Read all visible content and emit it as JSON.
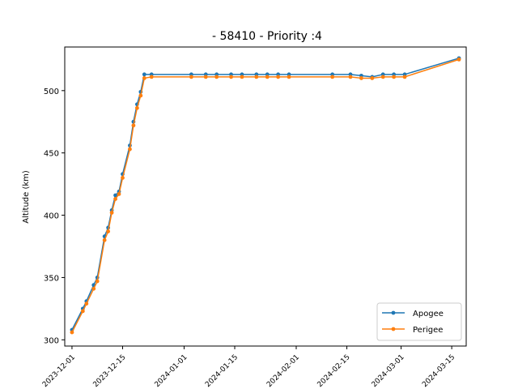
{
  "chart_data": {
    "type": "line",
    "title": "- 58410 - Priority :4",
    "xlabel": "",
    "ylabel": "Altitude (km)",
    "xlim": [
      "2023-11-29",
      "2024-03-19"
    ],
    "ylim": [
      295,
      535
    ],
    "x_ticks": [
      "2023-12-01",
      "2023-12-15",
      "2024-01-01",
      "2024-01-15",
      "2024-02-01",
      "2024-02-15",
      "2024-03-01",
      "2024-03-15"
    ],
    "y_ticks": [
      300,
      350,
      400,
      450,
      500
    ],
    "grid": false,
    "legend_position": "lower right",
    "series": [
      {
        "name": "Apogee",
        "color": "#1f77b4",
        "marker": "circle",
        "points": [
          [
            "2023-12-01",
            308
          ],
          [
            "2023-12-04",
            325
          ],
          [
            "2023-12-05",
            331
          ],
          [
            "2023-12-07",
            344
          ],
          [
            "2023-12-08",
            350
          ],
          [
            "2023-12-10",
            383
          ],
          [
            "2023-12-11",
            390
          ],
          [
            "2023-12-12",
            404
          ],
          [
            "2023-12-13",
            416
          ],
          [
            "2023-12-14",
            419
          ],
          [
            "2023-12-15",
            433
          ],
          [
            "2023-12-17",
            456
          ],
          [
            "2023-12-18",
            475
          ],
          [
            "2023-12-19",
            489
          ],
          [
            "2023-12-20",
            499
          ],
          [
            "2023-12-21",
            513
          ],
          [
            "2023-12-23",
            513
          ],
          [
            "2024-01-03",
            513
          ],
          [
            "2024-01-07",
            513
          ],
          [
            "2024-01-10",
            513
          ],
          [
            "2024-01-14",
            513
          ],
          [
            "2024-01-17",
            513
          ],
          [
            "2024-01-21",
            513
          ],
          [
            "2024-01-24",
            513
          ],
          [
            "2024-01-27",
            513
          ],
          [
            "2024-01-30",
            513
          ],
          [
            "2024-02-11",
            513
          ],
          [
            "2024-02-16",
            513
          ],
          [
            "2024-02-19",
            512
          ],
          [
            "2024-02-22",
            511
          ],
          [
            "2024-02-25",
            513
          ],
          [
            "2024-02-28",
            513
          ],
          [
            "2024-03-02",
            513
          ],
          [
            "2024-03-17",
            526
          ]
        ]
      },
      {
        "name": "Perigee",
        "color": "#ff7f0e",
        "marker": "circle",
        "points": [
          [
            "2023-12-01",
            306
          ],
          [
            "2023-12-04",
            323
          ],
          [
            "2023-12-05",
            329
          ],
          [
            "2023-12-07",
            341
          ],
          [
            "2023-12-08",
            347
          ],
          [
            "2023-12-10",
            380
          ],
          [
            "2023-12-11",
            387
          ],
          [
            "2023-12-12",
            402
          ],
          [
            "2023-12-13",
            413
          ],
          [
            "2023-12-14",
            417
          ],
          [
            "2023-12-15",
            430
          ],
          [
            "2023-12-17",
            453
          ],
          [
            "2023-12-18",
            472
          ],
          [
            "2023-12-19",
            486
          ],
          [
            "2023-12-20",
            496
          ],
          [
            "2023-12-21",
            510
          ],
          [
            "2023-12-23",
            511
          ],
          [
            "2024-01-03",
            511
          ],
          [
            "2024-01-07",
            511
          ],
          [
            "2024-01-10",
            511
          ],
          [
            "2024-01-14",
            511
          ],
          [
            "2024-01-17",
            511
          ],
          [
            "2024-01-21",
            511
          ],
          [
            "2024-01-24",
            511
          ],
          [
            "2024-01-27",
            511
          ],
          [
            "2024-01-30",
            511
          ],
          [
            "2024-02-11",
            511
          ],
          [
            "2024-02-16",
            511
          ],
          [
            "2024-02-19",
            510
          ],
          [
            "2024-02-22",
            510
          ],
          [
            "2024-02-25",
            511
          ],
          [
            "2024-02-28",
            511
          ],
          [
            "2024-03-02",
            511
          ],
          [
            "2024-03-17",
            525
          ]
        ]
      }
    ]
  }
}
